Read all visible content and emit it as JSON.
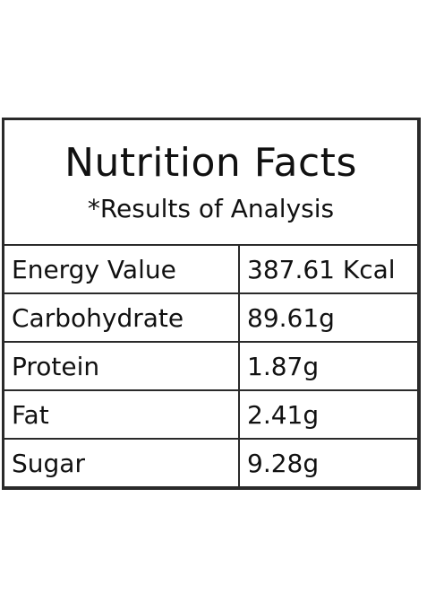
{
  "title": "Nutrition Facts",
  "subtitle": "*Results of Analysis",
  "rows": [
    {
      "label": "Energy Value",
      "value": "387.61 Kcal"
    },
    {
      "label": "Carbohydrate",
      "value": "89.61g"
    },
    {
      "label": "Protein",
      "value": "1.87g"
    },
    {
      "label": "Fat",
      "value": "2.41g"
    },
    {
      "label": "Sugar",
      "value": "9.28g"
    }
  ]
}
